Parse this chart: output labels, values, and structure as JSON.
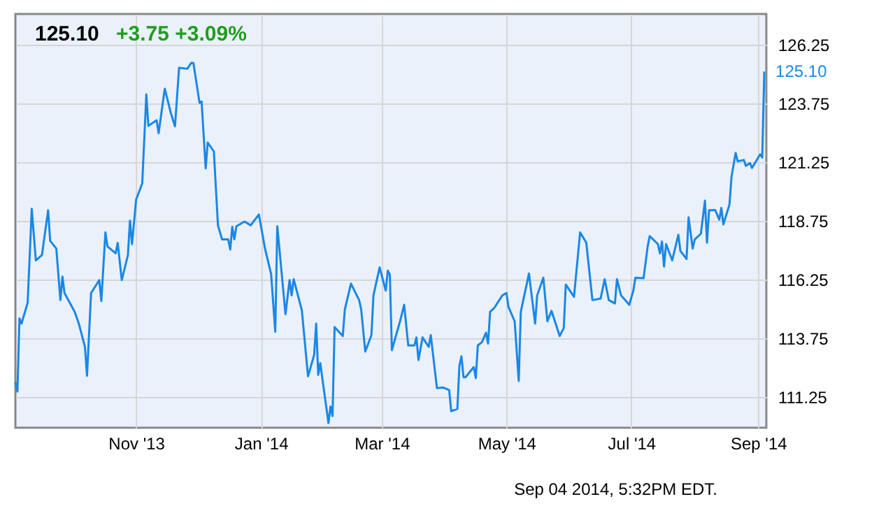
{
  "chart_data": {
    "type": "line",
    "title": "125.10",
    "subtitle": "+3.75  +3.09%",
    "annotations": [
      {
        "text": "125.10",
        "x": "2014-09-04",
        "y": 125.1
      },
      "Sep 04 2014, 5:32PM EDT."
    ],
    "x": [
      "2013-09-03",
      "2013-09-04",
      "2013-09-05",
      "2013-09-06",
      "2013-09-09",
      "2013-09-11",
      "2013-09-13",
      "2013-09-16",
      "2013-09-19",
      "2013-09-20",
      "2013-09-23",
      "2013-09-25",
      "2013-09-26",
      "2013-09-27",
      "2013-10-02",
      "2013-10-04",
      "2013-10-07",
      "2013-10-08",
      "2013-10-10",
      "2013-10-14",
      "2013-10-15",
      "2013-10-17",
      "2013-10-18",
      "2013-10-22",
      "2013-10-23",
      "2013-10-25",
      "2013-10-28",
      "2013-10-29",
      "2013-10-30",
      "2013-11-01",
      "2013-11-04",
      "2013-11-06",
      "2013-11-07",
      "2013-11-11",
      "2013-11-12",
      "2013-11-15",
      "2013-11-18",
      "2013-11-20",
      "2013-11-22",
      "2013-11-26",
      "2013-11-28",
      "2013-11-29",
      "2013-12-02",
      "2013-12-03",
      "2013-12-05",
      "2013-12-06",
      "2013-12-09",
      "2013-12-11",
      "2013-12-13",
      "2013-12-16",
      "2013-12-17",
      "2013-12-18",
      "2013-12-19",
      "2013-12-20",
      "2013-12-24",
      "2013-12-27",
      "2013-12-31",
      "2014-01-03",
      "2014-01-06",
      "2014-01-08",
      "2014-01-09",
      "2014-01-13",
      "2014-01-15",
      "2014-01-16",
      "2014-01-17",
      "2014-01-21",
      "2014-01-24",
      "2014-01-27",
      "2014-01-28",
      "2014-01-29",
      "2014-01-30",
      "2014-02-03",
      "2014-02-04",
      "2014-02-05",
      "2014-02-06",
      "2014-02-10",
      "2014-02-11",
      "2014-02-14",
      "2014-02-18",
      "2014-02-19",
      "2014-02-21",
      "2014-02-24",
      "2014-02-25",
      "2014-02-28",
      "2014-03-03",
      "2014-03-04",
      "2014-03-05",
      "2014-03-06",
      "2014-03-10",
      "2014-03-12",
      "2014-03-14",
      "2014-03-17",
      "2014-03-18",
      "2014-03-19",
      "2014-03-21",
      "2014-03-24",
      "2014-03-25",
      "2014-03-27",
      "2014-03-28",
      "2014-03-31",
      "2014-04-03",
      "2014-04-04",
      "2014-04-07",
      "2014-04-08",
      "2014-04-09",
      "2014-04-10",
      "2014-04-11",
      "2014-04-15",
      "2014-04-16",
      "2014-04-17",
      "2014-04-19",
      "2014-04-21",
      "2014-04-22",
      "2014-04-23",
      "2014-04-25",
      "2014-04-29",
      "2014-05-01",
      "2014-05-02",
      "2014-05-05",
      "2014-05-07",
      "2014-05-08",
      "2014-05-12",
      "2014-05-15",
      "2014-05-16",
      "2014-05-19",
      "2014-05-21",
      "2014-05-23",
      "2014-05-27",
      "2014-05-29",
      "2014-05-30",
      "2014-06-03",
      "2014-06-06",
      "2014-06-09",
      "2014-06-12",
      "2014-06-16",
      "2014-06-18",
      "2014-06-20",
      "2014-06-23",
      "2014-06-24",
      "2014-06-26",
      "2014-06-30",
      "2014-07-02",
      "2014-07-03",
      "2014-07-07",
      "2014-07-09",
      "2014-07-10",
      "2014-07-14",
      "2014-07-15",
      "2014-07-16",
      "2014-07-17",
      "2014-07-18",
      "2014-07-21",
      "2014-07-24",
      "2014-07-25",
      "2014-07-28",
      "2014-07-29",
      "2014-07-31",
      "2014-08-01",
      "2014-08-04",
      "2014-08-06",
      "2014-08-07",
      "2014-08-08",
      "2014-08-11",
      "2014-08-13",
      "2014-08-14",
      "2014-08-15",
      "2014-08-18",
      "2014-08-19",
      "2014-08-21",
      "2014-08-22",
      "2014-08-25",
      "2014-08-26",
      "2014-08-28",
      "2014-08-29",
      "2014-09-02",
      "2014-09-03",
      "2014-09-04"
    ],
    "series": [
      {
        "color": "#1a87e6",
        "values": [
          111.89,
          111.49,
          114.6,
          114.38,
          115.27,
          119.26,
          117.07,
          117.3,
          119.2,
          117.9,
          117.57,
          115.38,
          116.38,
          115.68,
          114.88,
          114.38,
          113.39,
          112.16,
          115.68,
          116.23,
          115.34,
          118.26,
          117.66,
          117.37,
          117.81,
          116.23,
          117.3,
          118.76,
          117.76,
          119.65,
          120.35,
          124.13,
          122.79,
          123.03,
          122.48,
          124.37,
          123.33,
          122.77,
          125.26,
          125.22,
          125.47,
          125.47,
          123.77,
          123.83,
          120.98,
          122.08,
          121.7,
          118.56,
          117.96,
          117.96,
          117.53,
          118.5,
          117.96,
          118.52,
          118.72,
          118.56,
          119.02,
          117.57,
          116.47,
          114.03,
          118.52,
          114.78,
          116.23,
          115.58,
          116.27,
          114.95,
          112.14,
          113.04,
          114.38,
          112.2,
          112.7,
          110.15,
          110.85,
          110.45,
          114.23,
          113.85,
          114.98,
          116.08,
          115.38,
          114.98,
          113.19,
          113.89,
          115.58,
          116.77,
          115.78,
          116.63,
          116.47,
          113.25,
          114.48,
          115.18,
          113.45,
          113.45,
          113.79,
          112.83,
          113.79,
          113.39,
          113.89,
          112.4,
          111.64,
          111.66,
          111.55,
          110.65,
          110.75,
          112.59,
          112.99,
          112.1,
          112.1,
          112.53,
          112.06,
          113.45,
          113.59,
          113.99,
          113.53,
          114.88,
          115.04,
          115.58,
          115.68,
          115.08,
          114.48,
          111.94,
          114.88,
          116.51,
          114.38,
          115.58,
          116.33,
          114.48,
          114.92,
          113.85,
          114.19,
          116.04,
          115.52,
          118.26,
          117.82,
          115.38,
          115.44,
          116.27,
          115.38,
          115.24,
          116.27,
          115.58,
          115.18,
          115.78,
          116.33,
          116.31,
          117.66,
          118.1,
          117.76,
          117.37,
          117.87,
          116.81,
          117.76,
          117.07,
          118.16,
          117.47,
          117.13,
          118.9,
          117.57,
          117.96,
          118.2,
          119.61,
          117.82,
          119.2,
          119.21,
          118.8,
          119.3,
          118.6,
          119.45,
          120.64,
          121.64,
          121.28,
          121.34,
          121.09,
          121.21,
          121.0,
          121.58,
          121.44,
          125.1
        ]
      }
    ],
    "xlim": [
      "2013-09-03",
      "2014-09-05"
    ],
    "ylim": [
      109.95,
      127.55
    ],
    "xticks": [
      {
        "value": "2013-11-01",
        "label": "Nov '13"
      },
      {
        "value": "2014-01-01",
        "label": "Jan '14"
      },
      {
        "value": "2014-03-01",
        "label": "Mar '14"
      },
      {
        "value": "2014-05-01",
        "label": "May '14"
      },
      {
        "value": "2014-07-01",
        "label": "Jul '14"
      },
      {
        "value": "2014-09-01",
        "label": "Sep '14"
      }
    ],
    "yticks": [
      111.25,
      113.75,
      116.25,
      118.75,
      121.25,
      123.75,
      126.25
    ],
    "grid": true
  }
}
